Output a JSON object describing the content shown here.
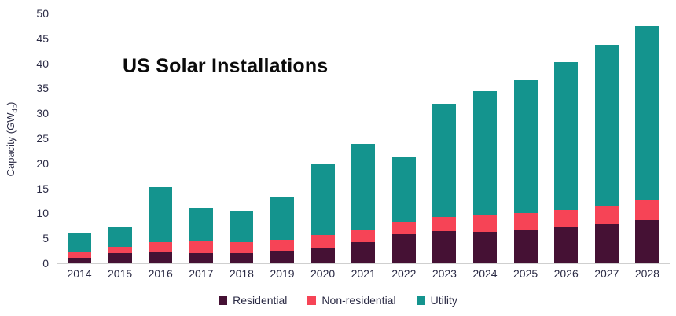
{
  "chart_data": {
    "type": "bar",
    "stacked": true,
    "title": "US Solar Installations",
    "ylabel": {
      "prefix": "Capacity (GW",
      "sub": "dc",
      "suffix": ")"
    },
    "xlabel": "",
    "ylim": [
      0,
      50
    ],
    "ytick_step": 5,
    "grid": false,
    "legend_position": "bottom",
    "categories": [
      "2014",
      "2015",
      "2016",
      "2017",
      "2018",
      "2019",
      "2020",
      "2021",
      "2022",
      "2023",
      "2024",
      "2025",
      "2026",
      "2027",
      "2028"
    ],
    "series": [
      {
        "name": "Residential",
        "color": "#451134",
        "values": [
          1.1,
          2.0,
          2.4,
          2.1,
          2.1,
          2.5,
          3.1,
          4.2,
          5.8,
          6.4,
          6.3,
          6.6,
          7.2,
          7.8,
          8.6
        ]
      },
      {
        "name": "Non-residential",
        "color": "#f64456",
        "values": [
          1.2,
          1.3,
          1.8,
          2.3,
          2.2,
          2.2,
          2.5,
          2.5,
          2.5,
          2.9,
          3.4,
          3.5,
          3.5,
          3.7,
          4.0
        ]
      },
      {
        "name": "Utility",
        "color": "#14948e",
        "values": [
          3.9,
          3.9,
          11.0,
          6.7,
          6.3,
          8.7,
          14.3,
          17.2,
          12.9,
          22.7,
          24.8,
          26.6,
          29.5,
          32.2,
          34.9
        ]
      }
    ],
    "colors": {
      "background": "#ffffff",
      "axis_line": "#d9d9d9",
      "tick_text": "#2b2b45",
      "title_text": "#0b0b0b"
    }
  }
}
